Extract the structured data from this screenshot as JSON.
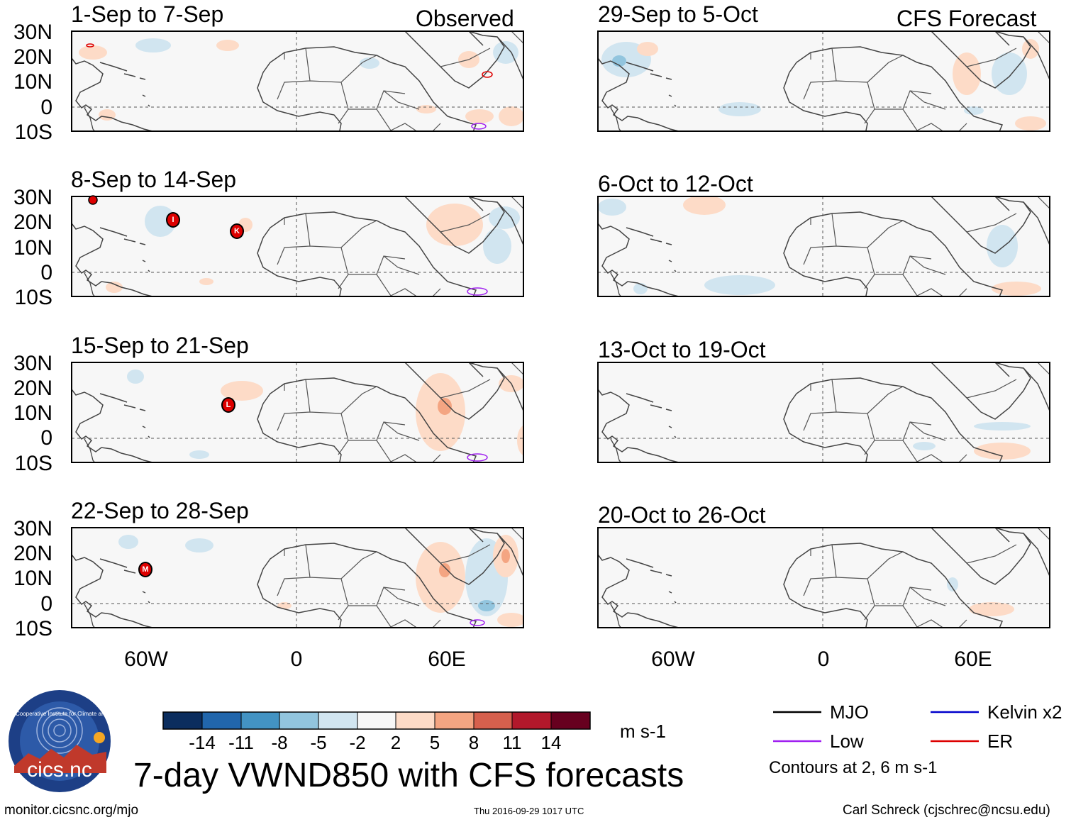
{
  "headers": {
    "observed": "Observed",
    "forecast": "CFS Forecast"
  },
  "panels": [
    {
      "title": "1-Sep to 7-Sep",
      "group": "observed"
    },
    {
      "title": "8-Sep to 14-Sep",
      "group": "observed"
    },
    {
      "title": "15-Sep to 21-Sep",
      "group": "observed"
    },
    {
      "title": "22-Sep to 28-Sep",
      "group": "observed"
    },
    {
      "title": "29-Sep to 5-Oct",
      "group": "forecast"
    },
    {
      "title": "6-Oct to 12-Oct",
      "group": "forecast"
    },
    {
      "title": "13-Oct to 19-Oct",
      "group": "forecast"
    },
    {
      "title": "20-Oct to 26-Oct",
      "group": "forecast"
    }
  ],
  "lat_labels": [
    "30N",
    "20N",
    "10N",
    "0",
    "10S"
  ],
  "lon_labels": [
    "60W",
    "0",
    "60E"
  ],
  "storm_markers": [
    {
      "panel": 1,
      "label": "I"
    },
    {
      "panel": 1,
      "label": "K"
    },
    {
      "panel": 2,
      "label": "L"
    },
    {
      "panel": 3,
      "label": "M"
    }
  ],
  "colorbar": {
    "colors": [
      "#0b2d5e",
      "#2166ac",
      "#4393c3",
      "#92c5de",
      "#d1e5f0",
      "#f7f7f7",
      "#fddbc7",
      "#f4a582",
      "#d6604d",
      "#b2182b",
      "#67001f"
    ],
    "tick_labels": [
      "-14",
      "-11",
      "-8",
      "-5",
      "-2",
      "2",
      "5",
      "8",
      "11",
      "14"
    ],
    "units": "m s-1"
  },
  "legend": {
    "items": [
      {
        "label": "MJO",
        "color": "#000000"
      },
      {
        "label": "Kelvin x2",
        "color": "#0000cc"
      },
      {
        "label": "Low",
        "color": "#a020f0"
      },
      {
        "label": "ER",
        "color": "#dd0000"
      }
    ],
    "contours_note": "Contours at 2, 6 m s-1"
  },
  "logo_text": "cics.nc",
  "logo_ring_text": "Cooperative Institute for Climate and Satellites",
  "main_title": "7-day VWND850 with CFS forecasts",
  "footer": {
    "url": "monitor.cicsnc.org/mjo",
    "timestamp": "Thu 2016-09-29 1017 UTC",
    "author": "Carl Schreck (cjschrec@ncsu.edu)"
  }
}
